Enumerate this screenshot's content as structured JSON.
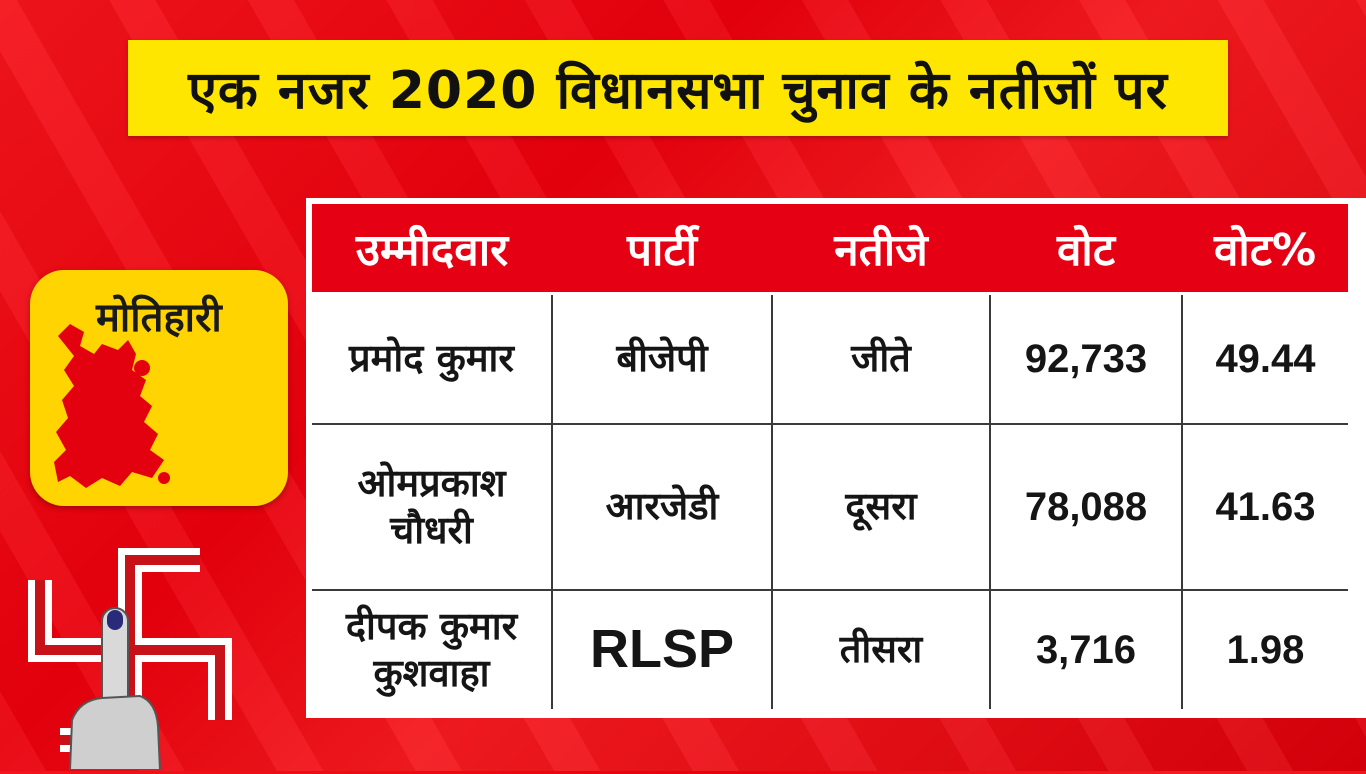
{
  "title": "एक नजर 2020 विधानसभा चुनाव के नतीजों पर",
  "district": {
    "name": "मोतिहारी",
    "map_icon": "district-map-icon",
    "map_color": "#e3000f",
    "card_color": "#ffd400"
  },
  "symbol": {
    "icon": "ballot-swastik-finger-icon"
  },
  "colors": {
    "background": "#e8000c",
    "title_bar": "#ffe600",
    "header_bg": "#e60013"
  },
  "table": {
    "headers": [
      "उम्मीदवार",
      "पार्टी",
      "नतीजे",
      "वोट",
      "वोट%"
    ],
    "rows": [
      {
        "candidate": "प्रमोद कुमार",
        "party": "बीजेपी",
        "result": "जीते",
        "votes": "92,733",
        "vote_pct": "49.44"
      },
      {
        "candidate": "ओमप्रकाश चौधरी",
        "party": "आरजेडी",
        "result": "दूसरा",
        "votes": "78,088",
        "vote_pct": "41.63"
      },
      {
        "candidate": "दीपक कुमार कुशवाहा",
        "party": "RLSP",
        "result": "तीसरा",
        "votes": "3,716",
        "vote_pct": "1.98"
      }
    ]
  }
}
